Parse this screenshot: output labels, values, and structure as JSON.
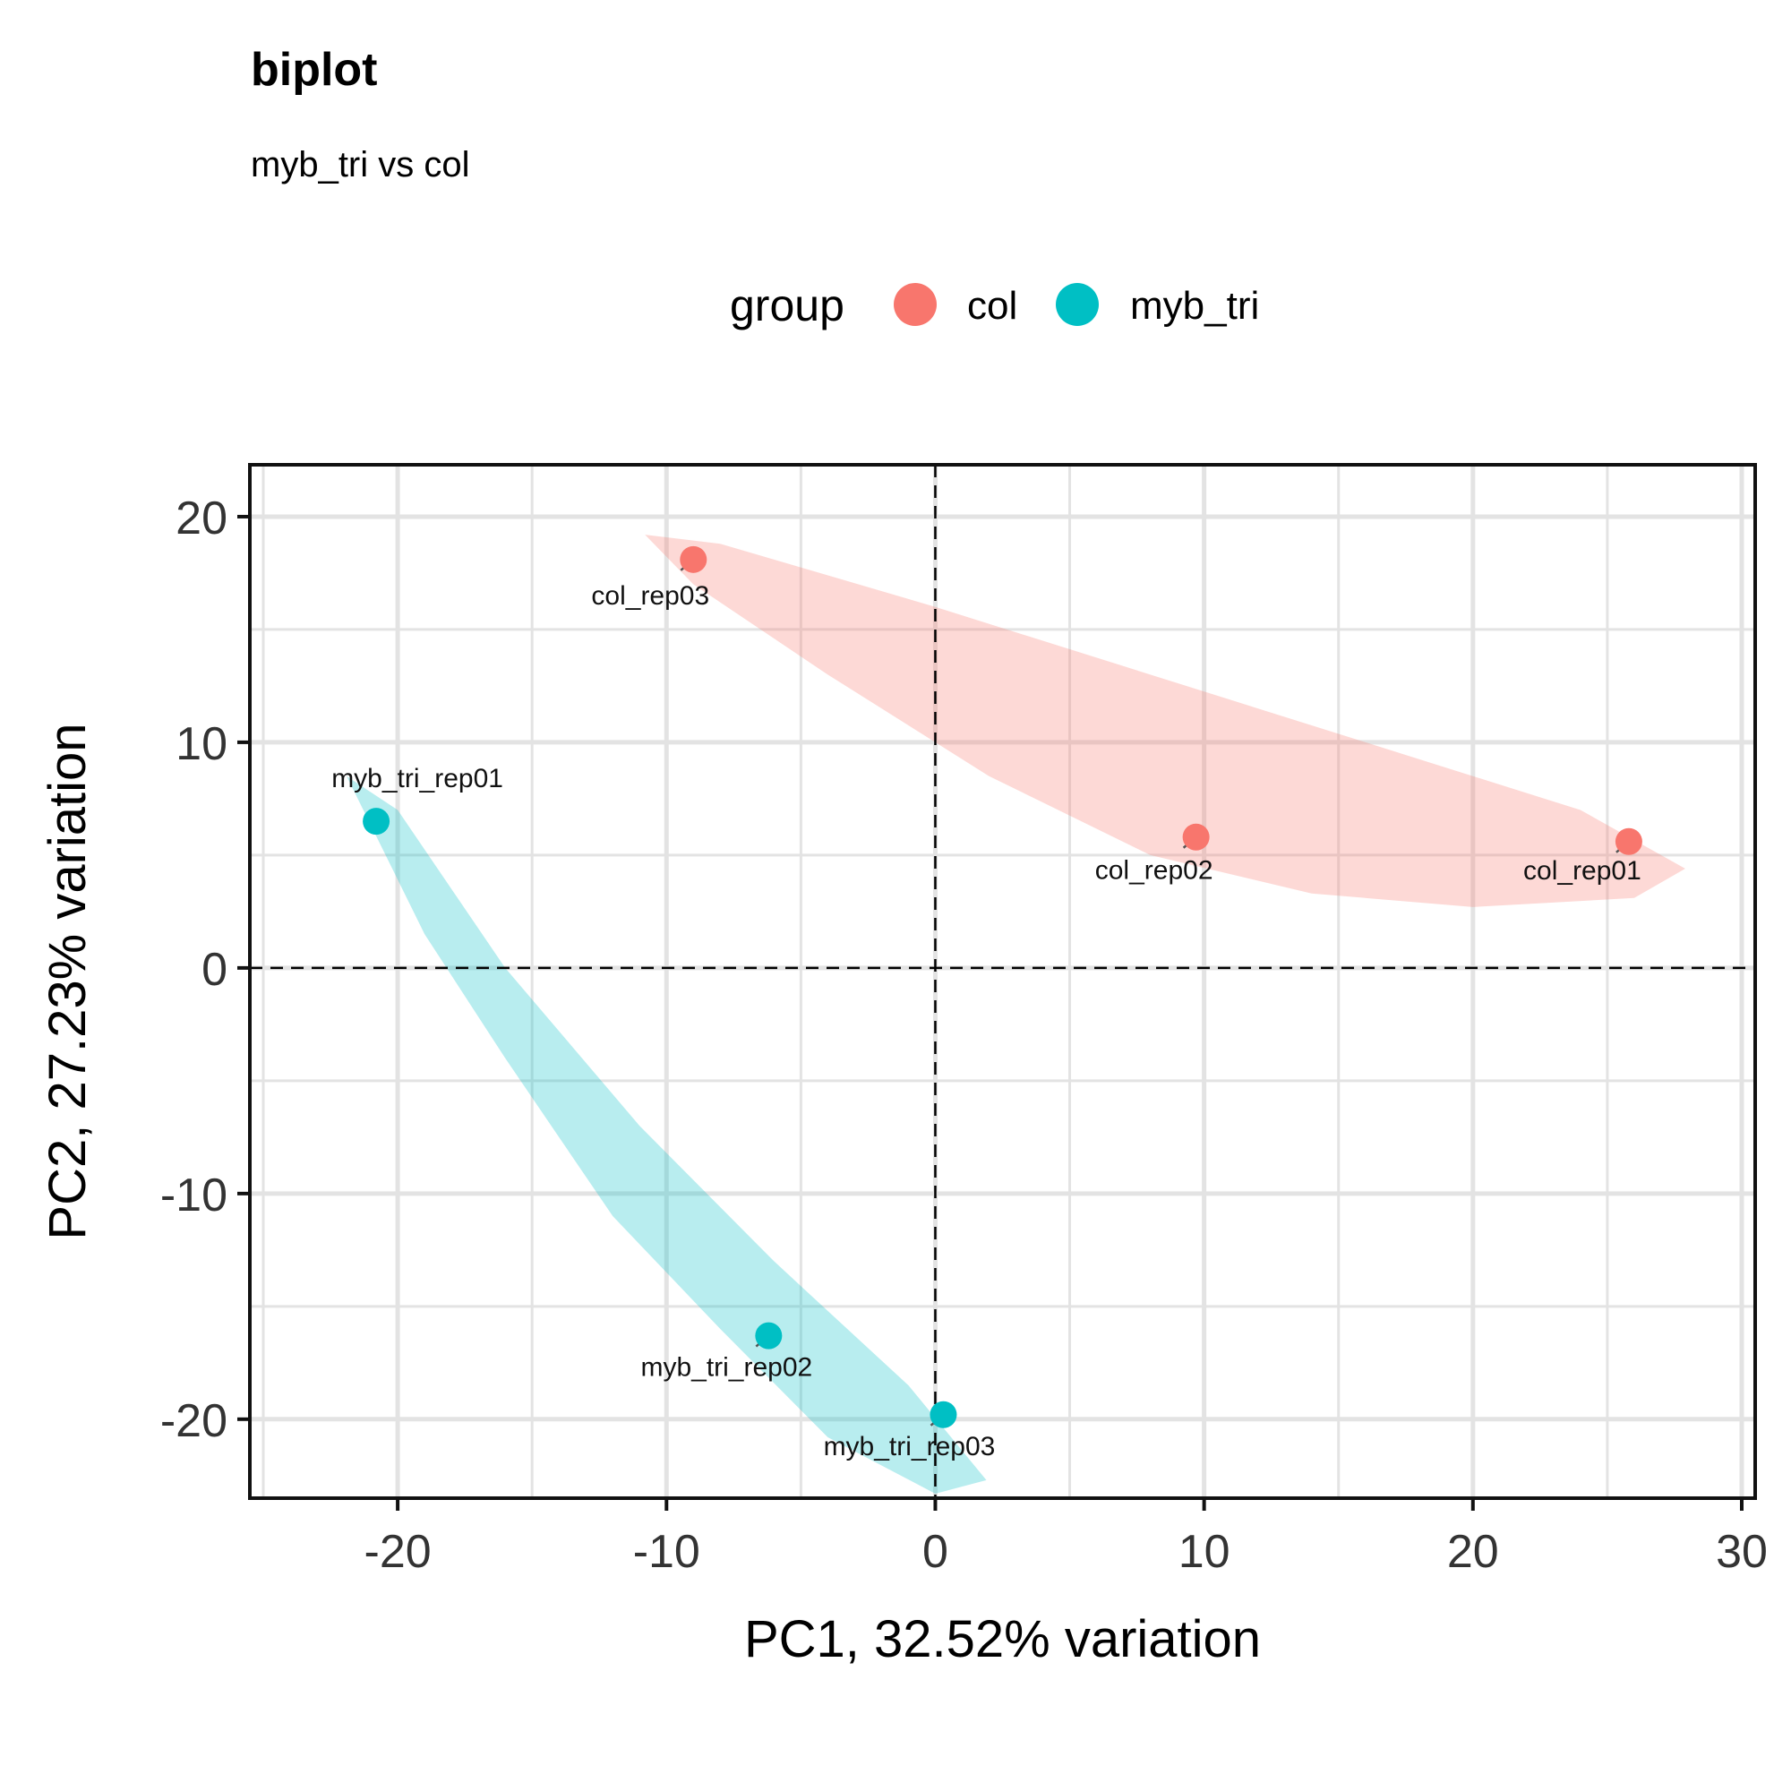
{
  "chart_data": {
    "type": "scatter",
    "title": "biplot",
    "subtitle": "myb_tri vs col",
    "xlabel": "PC1, 32.52% variation",
    "ylabel": "PC2, 27.23% variation",
    "xlim": [
      -25.5,
      30.5
    ],
    "ylim": [
      -23.5,
      22.3
    ],
    "x_ticks": [
      -20,
      -10,
      0,
      10,
      20,
      30
    ],
    "y_ticks": [
      -20,
      -10,
      0,
      10,
      20
    ],
    "x_tick_labels": [
      "-20",
      "-10",
      "0",
      "10",
      "20",
      "30"
    ],
    "y_tick_labels": [
      "-20",
      "-10",
      "0",
      "10",
      "20"
    ],
    "grid": true,
    "reference_lines": {
      "x": 0,
      "y": 0,
      "style": "dashed"
    },
    "legend": {
      "title": "group",
      "position": "top",
      "entries": [
        {
          "label": "col",
          "color": "#F8766D"
        },
        {
          "label": "myb_tri",
          "color": "#00BFC4"
        }
      ]
    },
    "series": [
      {
        "name": "col",
        "color": "#F8766D",
        "points": [
          {
            "label": "col_rep01",
            "x": 25.8,
            "y": 5.6
          },
          {
            "label": "col_rep02",
            "x": 9.7,
            "y": 5.8
          },
          {
            "label": "col_rep03",
            "x": -9.0,
            "y": 18.1
          }
        ]
      },
      {
        "name": "myb_tri",
        "color": "#00BFC4",
        "points": [
          {
            "label": "myb_tri_rep01",
            "x": -20.8,
            "y": 6.5
          },
          {
            "label": "myb_tri_rep02",
            "x": -6.2,
            "y": -16.3
          },
          {
            "label": "myb_tri_rep03",
            "x": 0.3,
            "y": -19.8
          }
        ]
      }
    ]
  }
}
